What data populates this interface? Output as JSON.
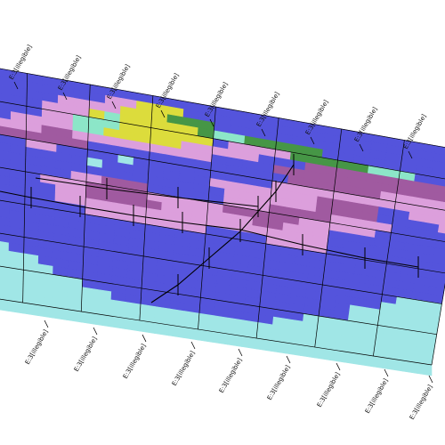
{
  "scene": {
    "type": "3d-grid-block-model",
    "background": "#ffffff",
    "grid_line_color": "#000000",
    "drillhole_color": "#000000",
    "palette": {
      "1": "#5454dc",
      "2": "#dc9fdc",
      "3": "#a05aa0",
      "4": "#8ce6c8",
      "5": "#dcdc3c",
      "6": "#469646",
      "7": "#a0e6e6"
    }
  },
  "axis": {
    "top_labels": [
      "E:3[illegible]",
      "E:3[illegible]",
      "E:3[illegible]",
      "E:3[illegible]",
      "E:3[illegible]",
      "E:3[illegible]",
      "E:3[illegible]",
      "E:3[illegible]",
      "E:3[illegible]"
    ],
    "bottom_labels": [
      "E:3[illegible]",
      "E:3[illegible]",
      "E:3[illegible]",
      "E:3[illegible]",
      "E:3[illegible]",
      "E:3[illegible]",
      "E:3[illegible]",
      "E:3[illegible]",
      "E:3[illegible]"
    ]
  },
  "block_grid": {
    "rows": [
      "77111111111111111111111111111111",
      "11111111122555111111111111111111",
      "11111122225556661111111111111111",
      "11111222545555564466666111111111",
      "11111224445555551222266666444111",
      "11122224455555222221113333333333",
      "11222332222222221111333333333333",
      "13333333111111111111133333322222",
      "11112211117111111111222222222222",
      "11111111711111112222222333311222",
      "11111111111111111222222333311112",
      "11111112233311111222333322221111",
      "11111222333322222333332222211111",
      "11111122333332222223322211111111",
      "11111122222222222222222211111111",
      "11111111222222221111222211111111",
      "11111111111111111111111111111111",
      "11111111111111111111111111111111",
      "11111111111111111111111111111111",
      "11111111111111111111111111111111",
      "77111111111111111111111111111777",
      "77711111111111111111111111117777",
      "77777111111111111111111111777777",
      "77777711111111111111111111777777",
      "77777777111111111111111777777777",
      "77777777771111111111177777777777",
      "77777777777777777777777777777777",
      "77777777777777777777777777777777"
    ]
  }
}
